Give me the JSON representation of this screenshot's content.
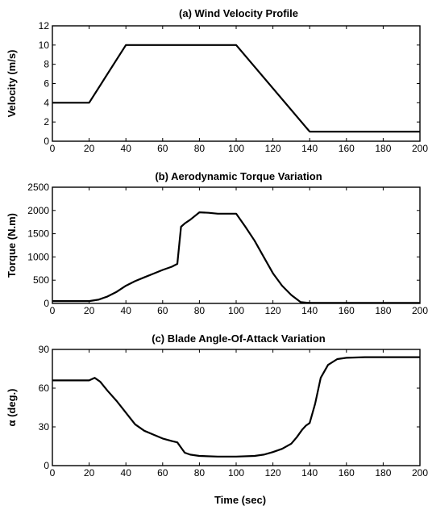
{
  "chart_data": [
    {
      "type": "line",
      "title": "(a) Wind Velocity Profile",
      "xlabel": "",
      "ylabel": "Velocity (m/s)",
      "xlim": [
        0,
        200
      ],
      "ylim": [
        0,
        12
      ],
      "xticks": [
        0,
        20,
        40,
        60,
        80,
        100,
        120,
        140,
        160,
        180,
        200
      ],
      "yticks": [
        0,
        2,
        4,
        6,
        8,
        10,
        12
      ],
      "grid": false,
      "series": [
        {
          "x": [
            0,
            20,
            40,
            100,
            140,
            200
          ],
          "y": [
            4,
            4,
            10,
            10,
            1,
            1
          ]
        }
      ]
    },
    {
      "type": "line",
      "title": "(b) Aerodynamic Torque Variation",
      "xlabel": "",
      "ylabel": "Torque (N.m)",
      "xlim": [
        0,
        200
      ],
      "ylim": [
        0,
        2500
      ],
      "xticks": [
        0,
        20,
        40,
        60,
        80,
        100,
        120,
        140,
        160,
        180,
        200
      ],
      "yticks": [
        0,
        500,
        1000,
        1500,
        2000,
        2500
      ],
      "grid": false,
      "series": [
        {
          "x": [
            0,
            20,
            25,
            30,
            35,
            40,
            45,
            50,
            55,
            60,
            65,
            68,
            69,
            70,
            72,
            75,
            80,
            85,
            90,
            100,
            105,
            110,
            115,
            120,
            125,
            130,
            135,
            140,
            160,
            180,
            200
          ],
          "y": [
            50,
            50,
            80,
            150,
            250,
            380,
            480,
            560,
            640,
            720,
            790,
            850,
            1250,
            1650,
            1720,
            1800,
            1960,
            1950,
            1930,
            1930,
            1650,
            1350,
            1000,
            650,
            380,
            180,
            30,
            10,
            10,
            10,
            10
          ]
        }
      ]
    },
    {
      "type": "line",
      "title": "(c) Blade Angle-Of-Attack Variation",
      "xlabel": "Time (sec)",
      "ylabel": "α (deg.)",
      "xlim": [
        0,
        200
      ],
      "ylim": [
        0,
        90
      ],
      "xticks": [
        0,
        20,
        40,
        60,
        80,
        100,
        120,
        140,
        160,
        180,
        200
      ],
      "yticks": [
        0,
        30,
        60,
        90
      ],
      "grid": false,
      "series": [
        {
          "x": [
            0,
            20,
            23,
            26,
            30,
            35,
            40,
            45,
            50,
            55,
            60,
            65,
            68,
            70,
            72,
            75,
            80,
            90,
            100,
            110,
            115,
            120,
            125,
            130,
            133,
            136,
            138,
            140,
            143,
            146,
            150,
            155,
            160,
            170,
            180,
            200
          ],
          "y": [
            66,
            66,
            68,
            65,
            58,
            50,
            41,
            32,
            27,
            24,
            21,
            19,
            18,
            14,
            10,
            8.5,
            7.5,
            7,
            7,
            7.5,
            8.5,
            10.5,
            13,
            17,
            22,
            28,
            31,
            33,
            48,
            68,
            78,
            82.5,
            83.5,
            84,
            84,
            84
          ]
        }
      ]
    }
  ]
}
